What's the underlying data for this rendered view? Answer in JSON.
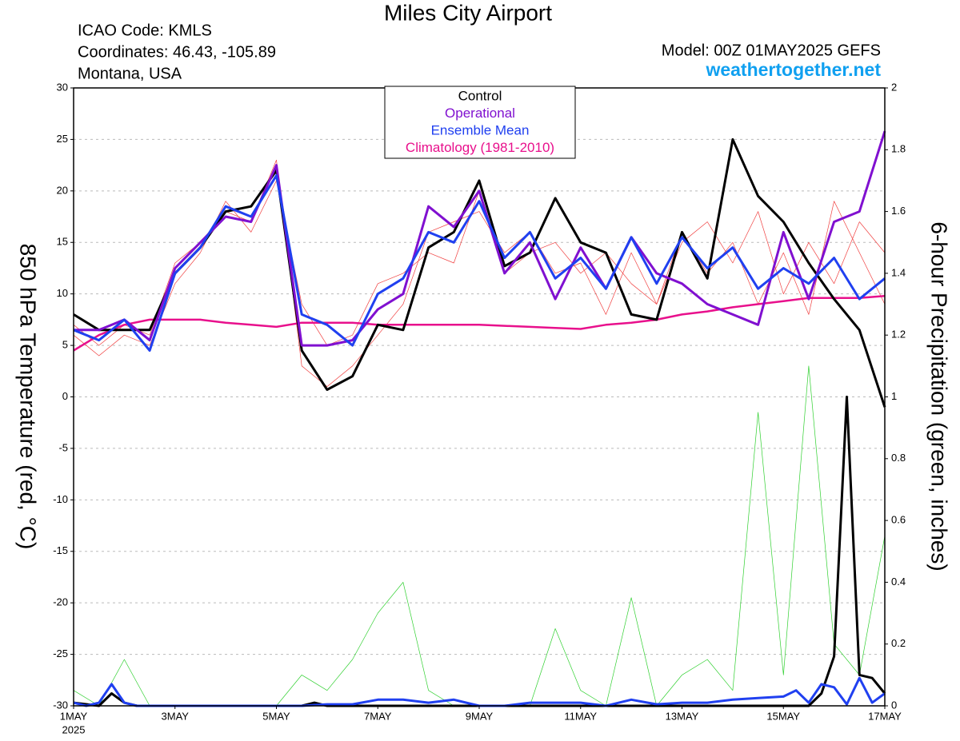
{
  "chart_data": {
    "type": "line",
    "title": "Miles City Airport",
    "info_left": [
      "ICAO Code: KMLS",
      "Coordinates: 46.43, -105.89",
      "Montana, USA"
    ],
    "model": "Model: 00Z 01MAY2025 GEFS",
    "site": "weathertogether.net",
    "y_label": "850 hPa Temperature (red, °C)",
    "y2_label": "6-hour Precipitation (green, inches)",
    "year": "2025",
    "x": [
      0,
      0.5,
      1,
      1.5,
      2,
      2.5,
      3,
      3.5,
      4,
      4.5,
      5,
      5.5,
      6,
      6.5,
      7,
      7.5,
      8,
      8.5,
      9,
      9.5,
      10,
      10.5,
      11,
      11.5,
      12,
      12.5,
      13,
      13.5,
      14,
      14.5,
      15,
      15.5,
      16
    ],
    "xlim": [
      0,
      16
    ],
    "xticks": [
      {
        "value": 0,
        "label": "1MAY"
      },
      {
        "value": 2,
        "label": "3MAY"
      },
      {
        "value": 4,
        "label": "5MAY"
      },
      {
        "value": 6,
        "label": "7MAY"
      },
      {
        "value": 8,
        "label": "9MAY"
      },
      {
        "value": 10,
        "label": "11MAY"
      },
      {
        "value": 12,
        "label": "13MAY"
      },
      {
        "value": 14,
        "label": "15MAY"
      },
      {
        "value": 16,
        "label": "17MAY"
      }
    ],
    "ylim": [
      -30,
      30
    ],
    "yticks": [
      -30,
      -25,
      -20,
      -15,
      -10,
      -5,
      0,
      5,
      10,
      15,
      20,
      25,
      30
    ],
    "y2lim": [
      0,
      2
    ],
    "y2ticks": [
      0,
      0.2,
      0.4,
      0.6,
      0.8,
      1,
      1.2,
      1.4,
      1.6,
      1.8,
      2
    ],
    "grid": true,
    "series": [
      {
        "color": "#f04040",
        "width": 0.7,
        "values": [
          7,
          5,
          7,
          6,
          13,
          15,
          18,
          17,
          23,
          3,
          1,
          3,
          6,
          9,
          16,
          17,
          18,
          14,
          16,
          12,
          13,
          8,
          14,
          9,
          16,
          12,
          15,
          9,
          14,
          8,
          19,
          14,
          9
        ]
      },
      {
        "color": "#f04040",
        "width": 0.7,
        "values": [
          6,
          4,
          6,
          5,
          11,
          14,
          19,
          16,
          21,
          9,
          5,
          6,
          11,
          12,
          14,
          13,
          20,
          12,
          14,
          15,
          12,
          14,
          11,
          9,
          15,
          17,
          13,
          18,
          10,
          15,
          11,
          17,
          14
        ]
      },
      {
        "color": "#30d030",
        "width": 0.7,
        "axis": "y2",
        "values": [
          0.05,
          0,
          0.15,
          0,
          0,
          0,
          0,
          0,
          0,
          0.1,
          0.05,
          0.15,
          0.3,
          0.4,
          0.05,
          0,
          0,
          0,
          0,
          0.25,
          0.05,
          0,
          0.35,
          0,
          0.1,
          0.15,
          0.05,
          0.95,
          0.1,
          1.1,
          0.2,
          0.1,
          0.55
        ]
      },
      {
        "name": "Climatology (1981-2010)",
        "color": "#e8108c",
        "width": 2.5,
        "values": [
          4.5,
          6,
          7,
          7.5,
          7.5,
          7.5,
          7.2,
          7,
          6.8,
          7.2,
          7.2,
          7.2,
          7,
          7,
          7,
          7,
          7,
          6.9,
          6.8,
          6.7,
          6.6,
          7,
          7.2,
          7.5,
          8,
          8.3,
          8.7,
          9,
          9.3,
          9.6,
          9.6,
          9.6,
          9.8
        ]
      },
      {
        "name": "Control",
        "color": "#000000",
        "width": 3,
        "values": [
          8,
          6.5,
          6.5,
          6.5,
          12,
          14.5,
          18,
          18.5,
          22,
          4.5,
          0.7,
          2,
          7,
          6.5,
          14.5,
          16,
          21,
          12.7,
          14,
          19.3,
          15,
          14,
          8,
          7.5,
          16,
          11.5,
          25,
          19.5,
          17,
          13,
          9.5,
          6.5,
          -1
        ]
      },
      {
        "name": "Operational",
        "color": "#8010d0",
        "width": 3,
        "values": [
          6.5,
          6.5,
          7.5,
          5.5,
          12.5,
          15,
          17.5,
          17,
          22.5,
          5,
          5,
          5.5,
          8.5,
          10,
          18.5,
          16.5,
          20,
          12,
          15,
          9.5,
          14.5,
          10.5,
          15.5,
          12,
          11,
          9,
          8,
          7,
          16,
          9.5,
          17,
          18,
          25.8
        ]
      },
      {
        "name": "Ensemble Mean",
        "color": "#2040f0",
        "width": 3,
        "values": [
          6.5,
          5.5,
          7.5,
          4.5,
          12,
          14.5,
          18.5,
          17.5,
          21.5,
          8,
          7,
          5,
          10,
          11.5,
          16,
          15,
          19,
          13.5,
          16,
          11.5,
          13.5,
          10.5,
          15.5,
          11,
          15.5,
          12.5,
          14.5,
          10.5,
          12.5,
          11,
          13.5,
          9.5,
          11.5
        ]
      },
      {
        "color": "#000000",
        "width": 3,
        "axis": "y2",
        "x": [
          0,
          0.5,
          0.75,
          1,
          1.25,
          4.5,
          4.75,
          5,
          14.5,
          14.75,
          15,
          15.25,
          15.5,
          15.75,
          16
        ],
        "values": [
          0.01,
          0,
          0.04,
          0.01,
          0,
          0,
          0.01,
          0,
          0,
          0.04,
          0.16,
          1,
          0.1,
          0.09,
          0.04
        ]
      },
      {
        "color": "#2040f0",
        "width": 3,
        "axis": "y2",
        "x": [
          0,
          0.25,
          0.5,
          0.75,
          1,
          1.25,
          4.5,
          5,
          5.5,
          6,
          6.5,
          7,
          7.5,
          8,
          8.5,
          9,
          9.5,
          10,
          10.5,
          11,
          11.5,
          12,
          12.5,
          13,
          13.5,
          14,
          14.25,
          14.5,
          14.75,
          15,
          15.25,
          15.5,
          15.75,
          16
        ],
        "values": [
          0.01,
          0,
          0.01,
          0.07,
          0.01,
          0,
          0,
          0.005,
          0.005,
          0.02,
          0.02,
          0.01,
          0.02,
          0,
          0,
          0.01,
          0.01,
          0.01,
          0,
          0.02,
          0.005,
          0.01,
          0.01,
          0.02,
          0.025,
          0.03,
          0.05,
          0.01,
          0.07,
          0.06,
          0.005,
          0.09,
          0.01,
          0.04
        ]
      }
    ]
  }
}
